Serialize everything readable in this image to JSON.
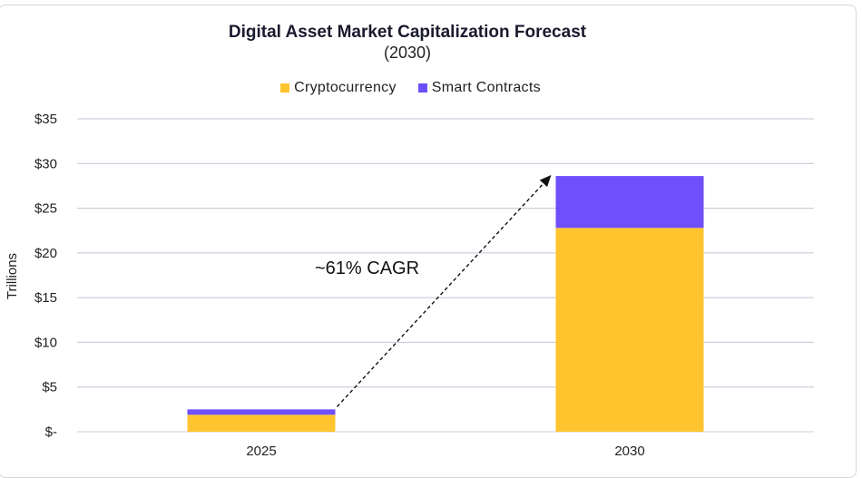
{
  "chart_data": {
    "type": "bar",
    "stacked": true,
    "title": "Digital Asset Market Capitalization Forecast",
    "subtitle": "(2030)",
    "xlabel": "",
    "ylabel": "Trillions",
    "categories": [
      "2025",
      "2030"
    ],
    "series": [
      {
        "name": "Cryptocurrency",
        "color": "#FFC42E",
        "values": [
          1.9,
          22.8
        ]
      },
      {
        "name": "Smart Contracts",
        "color": "#6E4FFB",
        "values": [
          0.6,
          5.8
        ]
      }
    ],
    "ylim": [
      0,
      35
    ],
    "yticks": [
      0,
      5,
      10,
      15,
      20,
      25,
      30,
      35
    ],
    "ytick_labels": [
      "$-",
      "$5",
      "$10",
      "$15",
      "$20",
      "$25",
      "$30",
      "$35"
    ],
    "grid": true,
    "legend": "top",
    "annotation": "~61% CAGR"
  }
}
